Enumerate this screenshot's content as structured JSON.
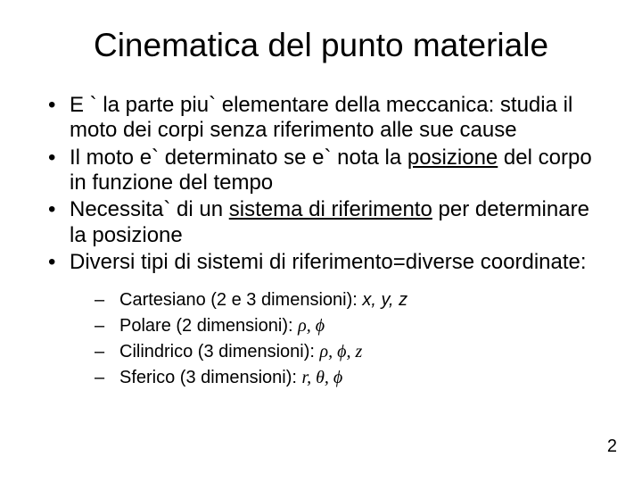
{
  "title": "Cinematica del punto materiale",
  "bullets": [
    {
      "pre": "E ` la parte piu` elementare della meccanica: studia il moto dei corpi senza riferimento alle sue cause",
      "u": "",
      "post": ""
    },
    {
      "pre": "Il moto e` determinato se e` nota la ",
      "u": "posizione",
      "post": " del corpo in funzione del tempo"
    },
    {
      "pre": "Necessita` di un ",
      "u": "sistema di riferimento",
      "post": " per determinare la posizione"
    },
    {
      "pre": "Diversi tipi di sistemi di riferimento=diverse coordinate:",
      "u": "",
      "post": ""
    }
  ],
  "sub": [
    {
      "label": "Cartesiano (2 e 3 dimensioni): ",
      "vars": "x, y, z"
    },
    {
      "label": "Polare (2 dimensioni): ",
      "vars": "ρ, ϕ"
    },
    {
      "label": "Cilindrico (3 dimensioni): ",
      "vars": "ρ, ϕ, z"
    },
    {
      "label": "Sferico (3 dimensioni): ",
      "vars": "r, θ, ϕ"
    }
  ],
  "pagenum": "2",
  "colors": {
    "background": "#ffffff",
    "text": "#000000"
  },
  "fontsize": {
    "title": 37,
    "body": 24,
    "sub": 20,
    "pagenum": 20
  }
}
